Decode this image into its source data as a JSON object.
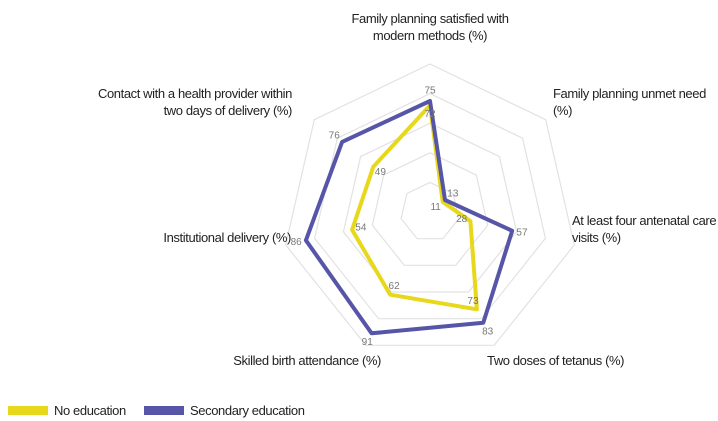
{
  "chart_data": {
    "type": "radar",
    "categories": [
      "Family planning satisfied with modern methods (%)",
      "Family planning unmet need (%)",
      "At least four antenatal care visits (%)",
      "Two doses of tetanus (%)",
      "Skilled birth attendance (%)",
      "Institutional delivery (%)",
      "Contact with a health provider within two days of delivery (%)"
    ],
    "series": [
      {
        "name": "No education",
        "color": "#e8d81c",
        "values": [
          72,
          11,
          28,
          73,
          62,
          54,
          49
        ]
      },
      {
        "name": "Secondary education",
        "color": "#5655a8",
        "values": [
          75,
          13,
          57,
          83,
          91,
          86,
          76
        ]
      }
    ],
    "rlim": [
      0,
      100
    ],
    "rticks": [
      20,
      40,
      60,
      80,
      100
    ],
    "grid": true,
    "legend": "bottom-left"
  }
}
